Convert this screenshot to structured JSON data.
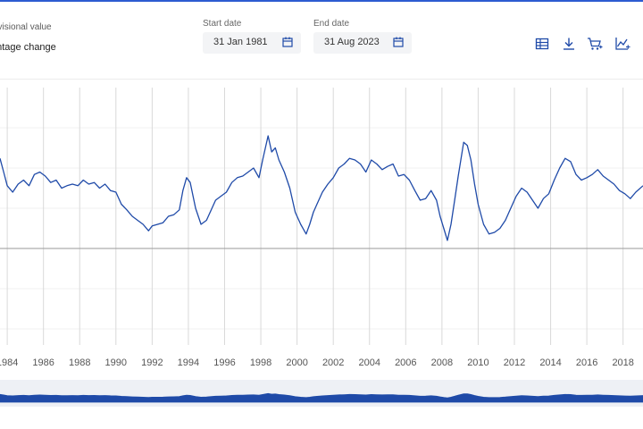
{
  "legend": {
    "provisional_label": "ovisional value",
    "change_label": "entage change"
  },
  "date_range": {
    "start_label": "Start date",
    "start_value": "31 Jan 1981",
    "end_label": "End date",
    "end_value": "31 Aug 2023"
  },
  "toolbar": {
    "icons": [
      "table-icon",
      "download-icon",
      "cart-add-icon",
      "chart-add-icon"
    ]
  },
  "colors": {
    "series": "#1f4aa8",
    "grid": "#d9d9d9",
    "zero_line": "#9a9a9a",
    "accent": "#2d5bd1"
  },
  "chart_data": {
    "type": "line",
    "title": "",
    "xlabel": "",
    "ylabel": "",
    "x_tick_labels": [
      "1984",
      "1986",
      "1988",
      "1990",
      "1992",
      "1994",
      "1996",
      "1998",
      "2000",
      "2002",
      "2004",
      "2006",
      "2008",
      "2010",
      "2012",
      "2014",
      "2016",
      "2018"
    ],
    "xlim": [
      1983.6,
      2019.1
    ],
    "ylim": [
      -1.2,
      2.0
    ],
    "zero_line": 0,
    "grid": "vertical",
    "series": [
      {
        "name": "",
        "x": [
          1983.6,
          1983.8,
          1984.0,
          1984.3,
          1984.6,
          1984.9,
          1985.2,
          1985.5,
          1985.8,
          1986.1,
          1986.4,
          1986.7,
          1987.0,
          1987.3,
          1987.6,
          1987.9,
          1988.2,
          1988.5,
          1988.8,
          1989.1,
          1989.4,
          1989.7,
          1990.0,
          1990.3,
          1990.6,
          1990.9,
          1991.2,
          1991.5,
          1991.8,
          1992.0,
          1992.3,
          1992.6,
          1992.9,
          1993.2,
          1993.5,
          1993.7,
          1993.9,
          1994.1,
          1994.4,
          1994.7,
          1995.0,
          1995.2,
          1995.5,
          1995.8,
          1996.1,
          1996.4,
          1996.7,
          1997.0,
          1997.3,
          1997.6,
          1997.9,
          1998.1,
          1998.4,
          1998.6,
          1998.8,
          1999.0,
          1999.3,
          1999.6,
          1999.9,
          2000.2,
          2000.5,
          2000.7,
          2000.9,
          2001.1,
          2001.4,
          2001.7,
          2002.0,
          2002.3,
          2002.6,
          2002.9,
          2003.2,
          2003.5,
          2003.8,
          2004.1,
          2004.4,
          2004.7,
          2005.0,
          2005.3,
          2005.6,
          2005.9,
          2006.2,
          2006.5,
          2006.8,
          2007.1,
          2007.4,
          2007.7,
          2007.9,
          2008.1,
          2008.3,
          2008.5,
          2008.7,
          2008.9,
          2009.2,
          2009.4,
          2009.6,
          2009.8,
          2010.0,
          2010.3,
          2010.6,
          2010.9,
          2011.2,
          2011.5,
          2011.8,
          2012.1,
          2012.4,
          2012.7,
          2013.0,
          2013.3,
          2013.6,
          2013.9,
          2014.2,
          2014.5,
          2014.8,
          2015.1,
          2015.4,
          2015.7,
          2016.0,
          2016.3,
          2016.6,
          2016.9,
          2017.2,
          2017.5,
          2017.8,
          2018.1,
          2018.4,
          2018.7,
          2019.1
        ],
        "y": [
          1.12,
          0.95,
          0.78,
          0.7,
          0.8,
          0.85,
          0.78,
          0.92,
          0.95,
          0.9,
          0.82,
          0.85,
          0.75,
          0.78,
          0.8,
          0.78,
          0.85,
          0.8,
          0.82,
          0.75,
          0.8,
          0.72,
          0.7,
          0.55,
          0.48,
          0.4,
          0.35,
          0.3,
          0.22,
          0.28,
          0.3,
          0.32,
          0.4,
          0.42,
          0.48,
          0.72,
          0.88,
          0.82,
          0.5,
          0.3,
          0.35,
          0.45,
          0.6,
          0.65,
          0.7,
          0.82,
          0.88,
          0.9,
          0.95,
          1.0,
          0.88,
          1.1,
          1.4,
          1.2,
          1.25,
          1.1,
          0.95,
          0.75,
          0.45,
          0.3,
          0.18,
          0.3,
          0.45,
          0.55,
          0.7,
          0.8,
          0.88,
          1.0,
          1.05,
          1.12,
          1.1,
          1.05,
          0.95,
          1.1,
          1.05,
          0.98,
          1.02,
          1.05,
          0.9,
          0.92,
          0.85,
          0.72,
          0.6,
          0.62,
          0.72,
          0.6,
          0.4,
          0.25,
          0.1,
          0.3,
          0.6,
          0.9,
          1.32,
          1.28,
          1.1,
          0.8,
          0.55,
          0.3,
          0.18,
          0.2,
          0.25,
          0.35,
          0.5,
          0.65,
          0.75,
          0.7,
          0.6,
          0.5,
          0.62,
          0.68,
          0.85,
          1.0,
          1.12,
          1.08,
          0.92,
          0.85,
          0.88,
          0.92,
          0.98,
          0.9,
          0.85,
          0.8,
          0.72,
          0.68,
          0.62,
          0.7,
          0.78
        ]
      }
    ]
  }
}
